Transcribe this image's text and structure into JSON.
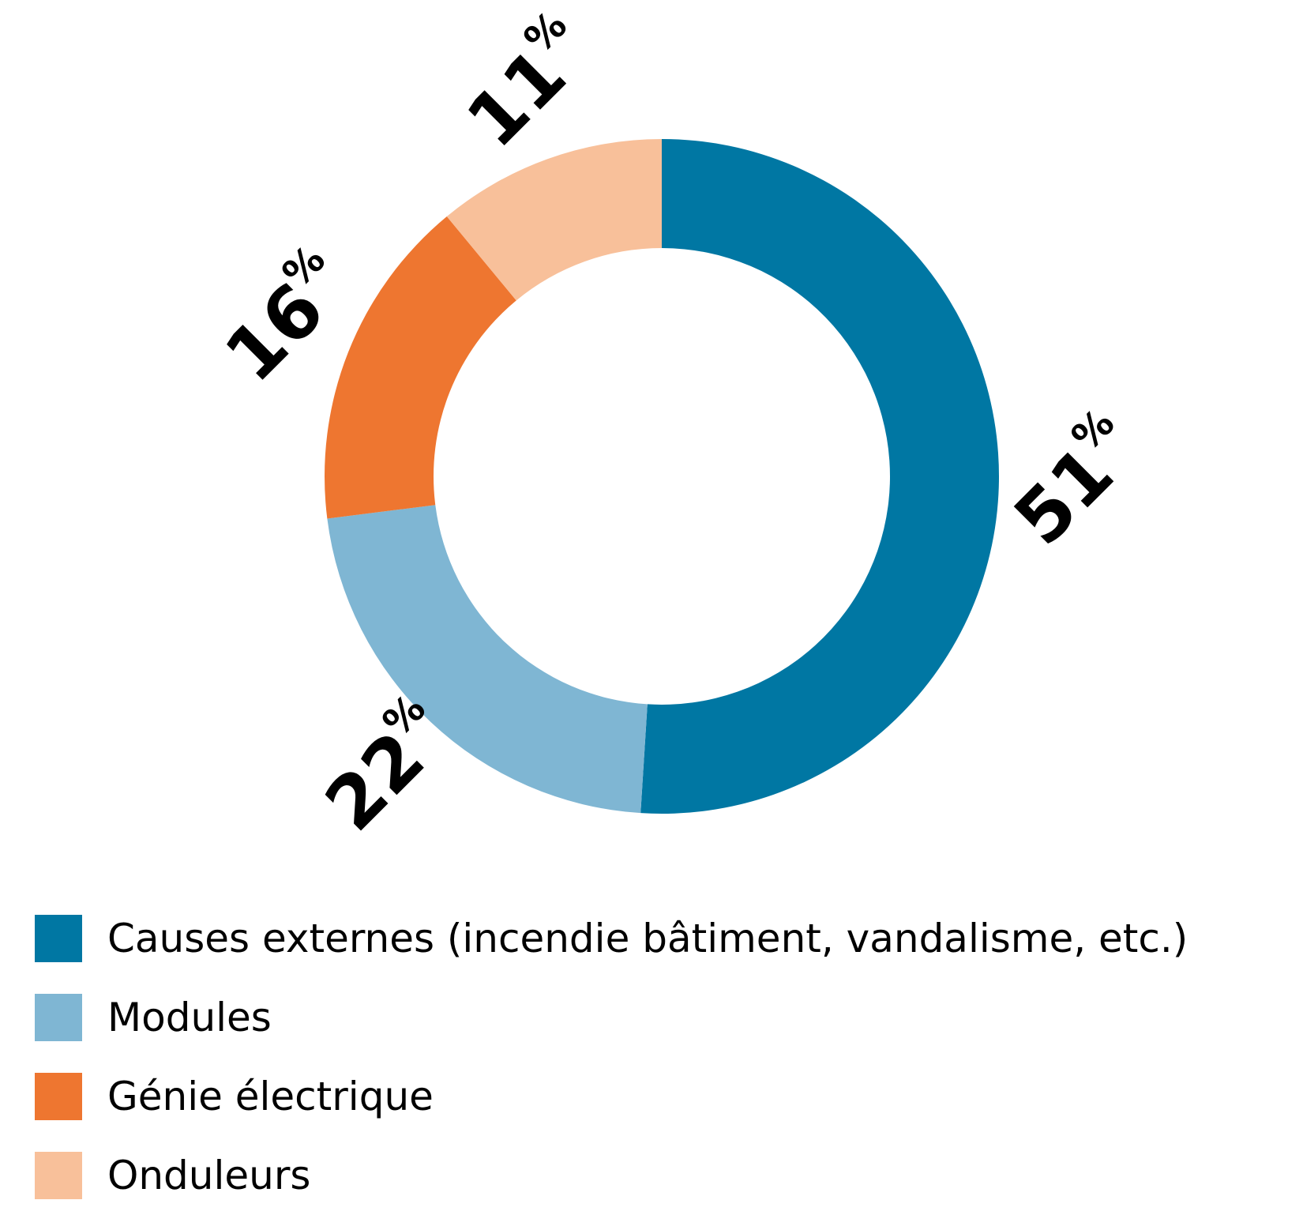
{
  "chart_data": {
    "type": "pie",
    "variant": "donut",
    "unit": "%",
    "categories": [
      "Causes externes (incendie bâtiment, vandalisme, etc.)",
      "Modules",
      "Génie électrique",
      "Onduleurs"
    ],
    "values": [
      51,
      22,
      16,
      11
    ],
    "colors": [
      "#0077a3",
      "#7fb6d3",
      "#ee7630",
      "#f8c09a"
    ],
    "data_labels": [
      "51",
      "22",
      "16",
      "11"
    ],
    "legend_position": "bottom-left"
  }
}
